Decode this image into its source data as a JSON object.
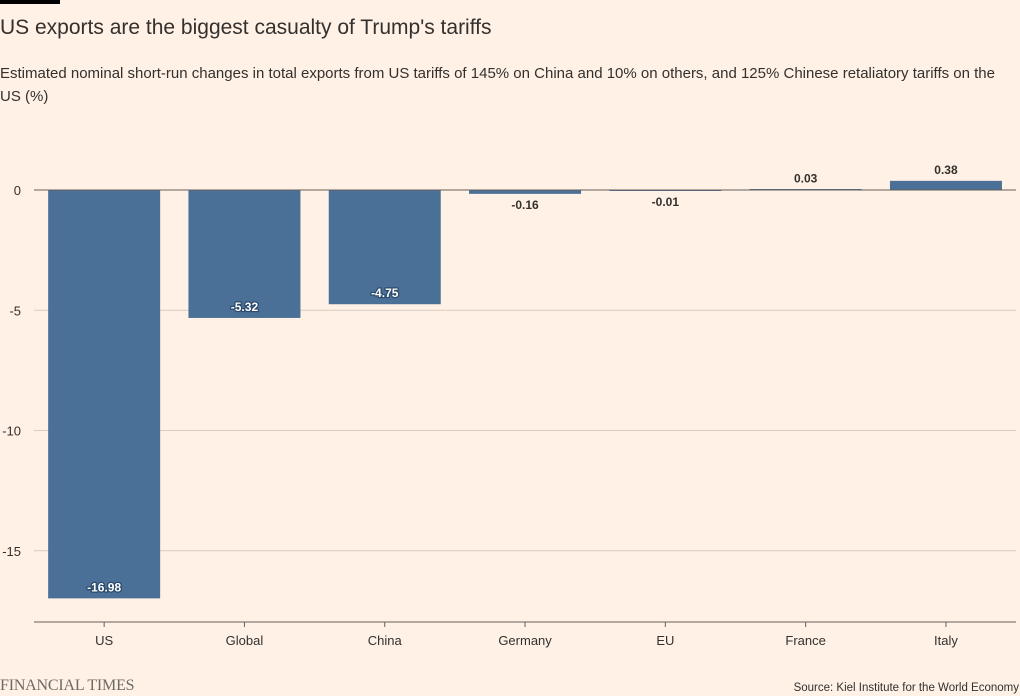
{
  "header": {
    "title": "US exports are the biggest casualty of Trump's tariffs",
    "subtitle": "Estimated nominal short-run changes in total exports from US tariffs of 145% on China and 10% on others, and 125% Chinese retaliatory tariffs on the US (%)"
  },
  "footer": {
    "brand": "FINANCIAL TIMES",
    "source": "Source: Kiel Institute for the World Economy"
  },
  "colors": {
    "background": "#fff1e5",
    "bar": "#4a7098",
    "grid": "#d8cbbf",
    "axis": "#66605c",
    "text": "#33302e"
  },
  "chart_data": {
    "type": "bar",
    "categories": [
      "US",
      "Global",
      "China",
      "Germany",
      "EU",
      "France",
      "Italy"
    ],
    "values": [
      -16.98,
      -5.32,
      -4.75,
      -0.16,
      -0.01,
      0.03,
      0.38
    ],
    "value_labels": [
      "-16.98",
      "-5.32",
      "-4.75",
      "-0.16",
      "-0.01",
      "0.03",
      "0.38"
    ],
    "ylim": [
      -17.9,
      0.5
    ],
    "yticks": [
      0,
      -5,
      -10,
      -15
    ],
    "ytick_labels": [
      "0",
      "-5",
      "-10",
      "-15"
    ],
    "grid": true,
    "legend": "none"
  }
}
